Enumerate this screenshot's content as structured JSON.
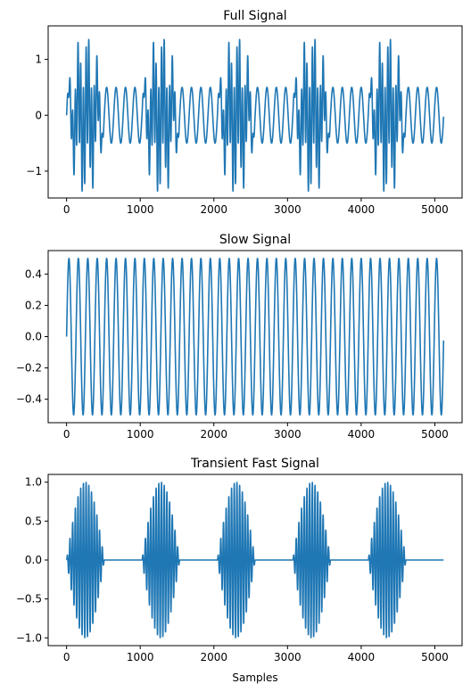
{
  "figure": {
    "background": "#ffffff",
    "line_color": "#1f77b4"
  },
  "chart_data": [
    {
      "id": "full",
      "type": "line",
      "title": "Full Signal",
      "xlabel": "",
      "ylabel": "",
      "xlim": [
        -250,
        5370
      ],
      "ylim": [
        -1.48,
        1.6
      ],
      "xticks": [
        0,
        1000,
        2000,
        3000,
        4000,
        5000
      ],
      "yticks": [
        -1,
        0,
        1
      ],
      "grid": false,
      "series": [
        {
          "signal": "sum",
          "components": [
            {
              "kind": "sine",
              "amplitude": 0.5,
              "cycles": 40,
              "length": 5120
            },
            {
              "kind": "burst",
              "amplitude": 1.0,
              "count": 5,
              "period": 1024,
              "width": 512,
              "cycles_per_burst": 14
            }
          ]
        }
      ]
    },
    {
      "id": "slow",
      "type": "line",
      "title": "Slow Signal",
      "xlabel": "",
      "ylabel": "",
      "xlim": [
        -250,
        5370
      ],
      "ylim": [
        -0.55,
        0.55
      ],
      "xticks": [
        0,
        1000,
        2000,
        3000,
        4000,
        5000
      ],
      "yticks": [
        -0.4,
        -0.2,
        0.0,
        0.2,
        0.4
      ],
      "grid": false,
      "series": [
        {
          "signal": "sine",
          "amplitude": 0.5,
          "cycles": 40,
          "length": 5120
        }
      ]
    },
    {
      "id": "fast",
      "type": "line",
      "title": "Transient Fast Signal",
      "xlabel": "Samples",
      "ylabel": "",
      "xlim": [
        -250,
        5370
      ],
      "ylim": [
        -1.1,
        1.1
      ],
      "xticks": [
        0,
        1000,
        2000,
        3000,
        4000,
        5000
      ],
      "yticks": [
        -1.0,
        -0.5,
        0.0,
        0.5,
        1.0
      ],
      "grid": false,
      "series": [
        {
          "signal": "burst",
          "amplitude": 1.0,
          "count": 5,
          "period": 1024,
          "width": 512,
          "cycles_per_burst": 14,
          "length": 5120
        }
      ]
    }
  ]
}
